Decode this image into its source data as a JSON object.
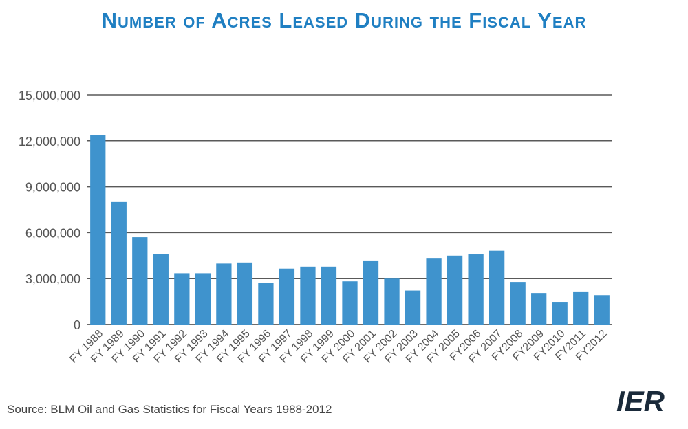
{
  "title": "Number of Acres Leased During the Fiscal Year",
  "source": "Source: BLM Oil and Gas Statistics for Fiscal Years 1988-2012",
  "logo_text": "IER",
  "colors": {
    "bar": "#3f93cd",
    "title": "#1f7fc2",
    "grid": "#595959",
    "logo": "#1a2a3a",
    "logo_accent": "#2a8ad0"
  },
  "chart_data": {
    "type": "bar",
    "title": "Number of Acres Leased During the Fiscal Year",
    "categories": [
      "FY 1988",
      "FY 1989",
      "FY 1990",
      "FY 1991",
      "FY 1992",
      "FY 1993",
      "FY 1994",
      "FY 1995",
      "FY 1996",
      "FY 1997",
      "FY 1998",
      "FY 1999",
      "FY 2000",
      "FY 2001",
      "FY 2002",
      "FY 2003",
      "FY 2004",
      "FY 2005",
      "FY2006",
      "FY 2007",
      "FY2008",
      "FY2009",
      "FY2010",
      "FY2011",
      "FY2012"
    ],
    "values": [
      12350000,
      8000000,
      5700000,
      4620000,
      3350000,
      3350000,
      3980000,
      4050000,
      2720000,
      3650000,
      3780000,
      3780000,
      2820000,
      4180000,
      3000000,
      2220000,
      4350000,
      4500000,
      4580000,
      4820000,
      2780000,
      2060000,
      1480000,
      2160000,
      1920000
    ],
    "ylim": [
      0,
      15000000
    ],
    "yticks": [
      0,
      3000000,
      6000000,
      9000000,
      12000000,
      15000000
    ],
    "ytick_labels": [
      "0",
      "3,000,000",
      "6,000,000",
      "9,000,000",
      "12,000,000",
      "15,000,000"
    ],
    "xlabel": "",
    "ylabel": "",
    "grid": true
  }
}
